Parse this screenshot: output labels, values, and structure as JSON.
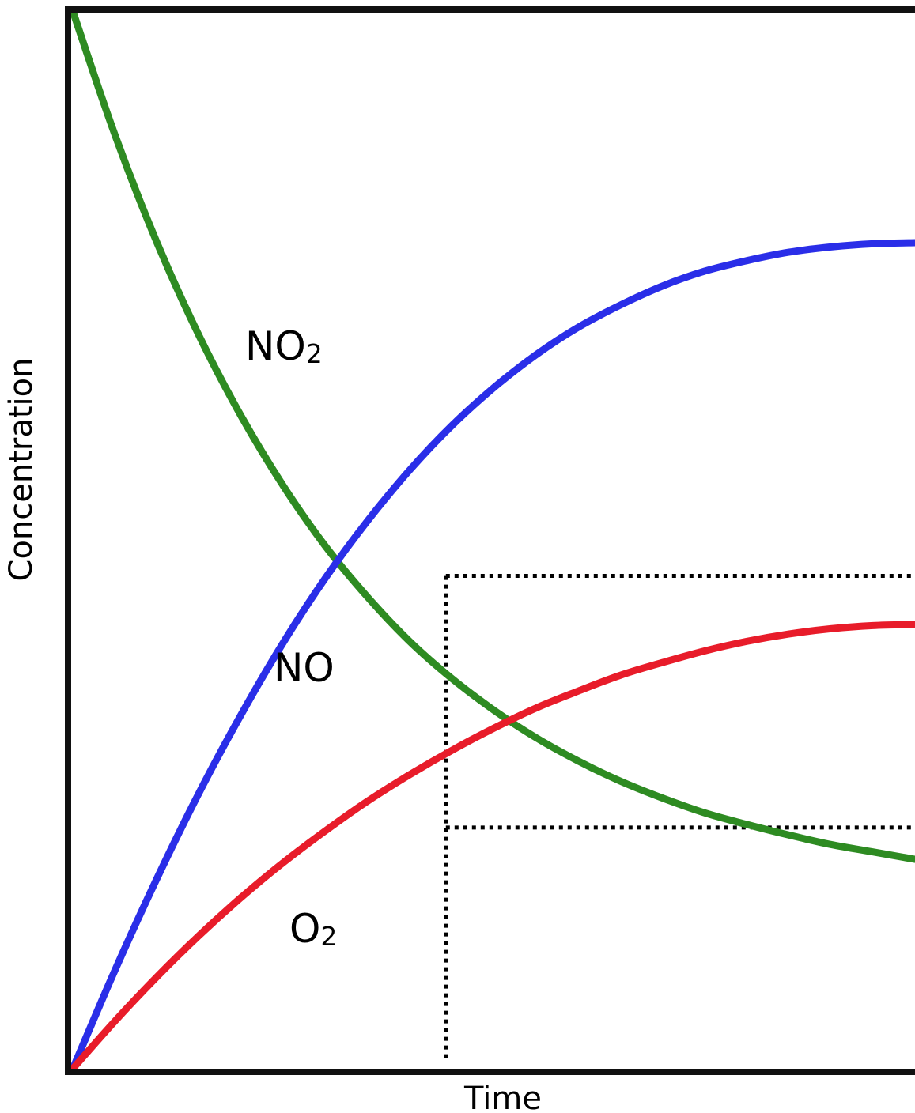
{
  "chart_data": {
    "type": "line",
    "title": "",
    "xlabel": "Time",
    "ylabel": "Concentration",
    "xlim": [
      0,
      1
    ],
    "ylim": [
      0,
      1
    ],
    "grid": false,
    "legend": "none",
    "series": [
      {
        "name": "NO2",
        "label_main": "NO",
        "label_sub": "2",
        "color": "#2e8b22",
        "x": [
          0,
          0.05,
          0.1,
          0.15,
          0.2,
          0.25,
          0.3,
          0.35,
          0.4,
          0.45,
          0.5,
          0.55,
          0.6,
          0.65,
          0.7,
          0.75,
          0.8,
          0.85,
          0.9,
          0.95,
          1
        ],
        "y": [
          1.0,
          0.883,
          0.781,
          0.693,
          0.617,
          0.551,
          0.494,
          0.446,
          0.404,
          0.369,
          0.339,
          0.313,
          0.291,
          0.272,
          0.256,
          0.242,
          0.231,
          0.221,
          0.212,
          0.205,
          0.198
        ]
      },
      {
        "name": "NO",
        "label_main": "NO",
        "label_sub": "",
        "color": "#2a2ee8",
        "x": [
          0,
          0.05,
          0.1,
          0.15,
          0.2,
          0.25,
          0.3,
          0.35,
          0.4,
          0.45,
          0.5,
          0.55,
          0.6,
          0.65,
          0.7,
          0.75,
          0.8,
          0.85,
          0.9,
          0.95,
          1
        ],
        "y": [
          0.0,
          0.093,
          0.18,
          0.261,
          0.335,
          0.403,
          0.464,
          0.518,
          0.566,
          0.608,
          0.644,
          0.675,
          0.701,
          0.722,
          0.74,
          0.754,
          0.764,
          0.772,
          0.777,
          0.78,
          0.781
        ]
      },
      {
        "name": "O2",
        "label_main": "O",
        "label_sub": "2",
        "color": "#e81c2a",
        "x": [
          0,
          0.05,
          0.1,
          0.15,
          0.2,
          0.25,
          0.3,
          0.35,
          0.4,
          0.45,
          0.5,
          0.55,
          0.6,
          0.65,
          0.7,
          0.75,
          0.8,
          0.85,
          0.9,
          0.95,
          1
        ],
        "y": [
          0.0,
          0.045,
          0.087,
          0.126,
          0.162,
          0.195,
          0.225,
          0.253,
          0.278,
          0.301,
          0.322,
          0.341,
          0.357,
          0.372,
          0.384,
          0.395,
          0.404,
          0.411,
          0.416,
          0.419,
          0.42
        ]
      }
    ],
    "reference_lines": [
      {
        "type": "vertical",
        "x": 0.443,
        "y_from": 0.01,
        "y_to": 0.466
      },
      {
        "type": "horizontal",
        "y": 0.466,
        "x_from": 0.443,
        "x_to": 1
      },
      {
        "type": "horizontal",
        "y": 0.228,
        "x_from": 0.443,
        "x_to": 1
      }
    ]
  }
}
